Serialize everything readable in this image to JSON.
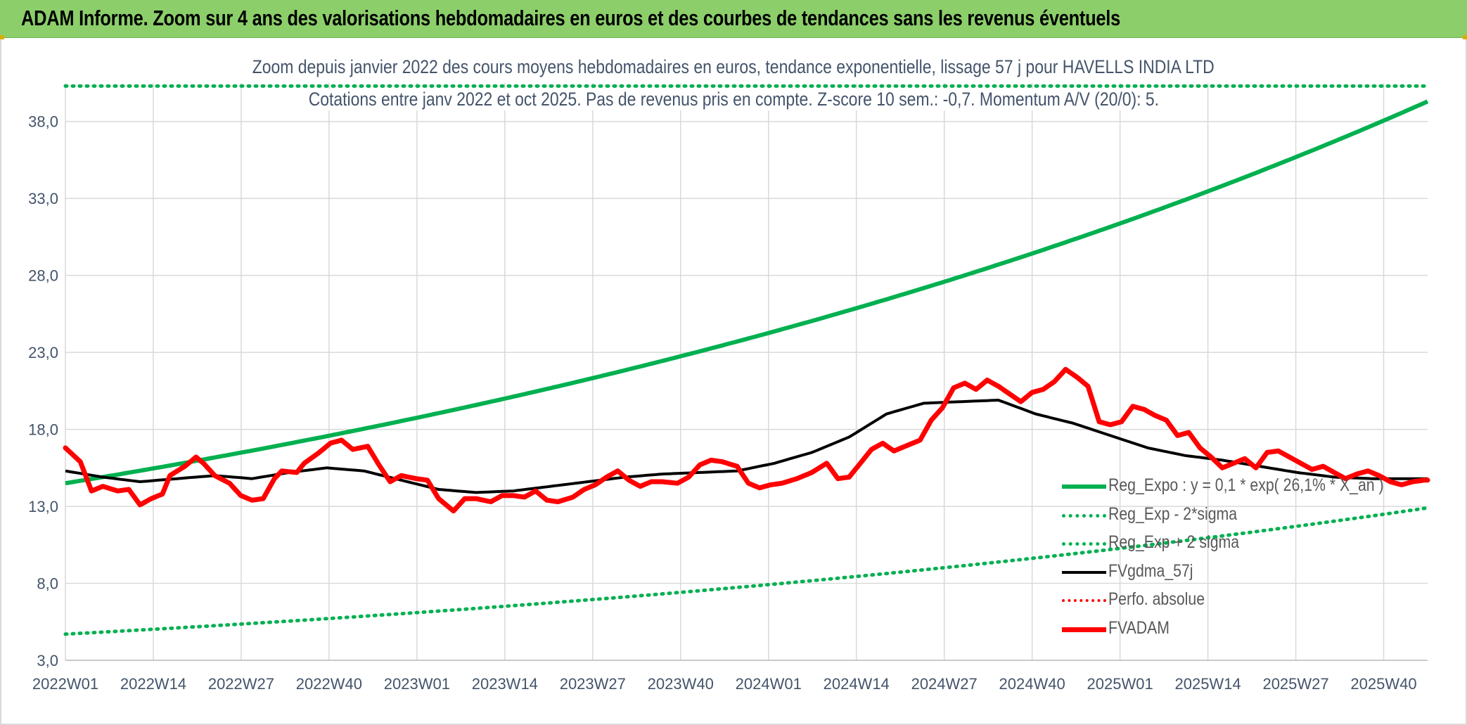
{
  "banner": {
    "title": "ADAM Informe. Zoom sur 4 ans des valorisations hebdomadaires en euros et des courbes de tendances sans les revenus éventuels"
  },
  "chart_data": {
    "type": "line",
    "title": "Zoom depuis janvier 2022 des cours moyens hebdomadaires en euros, tendance exponentielle, lissage 57 j pour HAVELLS INDIA LTD",
    "subtitle": "Cotations entre janv 2022 et oct 2025. Pas de revenus pris en compte. Z-score 10 sem.: -0,7. Momentum A/V (20/0): 5.",
    "xlabel": "",
    "ylabel": "",
    "ylim": [
      3,
      40.5
    ],
    "yticks": [
      "3,0",
      "8,0",
      "13,0",
      "18,0",
      "23,0",
      "28,0",
      "33,0",
      "38,0"
    ],
    "ytick_values": [
      3,
      8,
      13,
      18,
      23,
      28,
      33,
      38
    ],
    "xticks": [
      "2022W01",
      "2022W14",
      "2022W27",
      "2022W40",
      "2023W01",
      "2023W14",
      "2023W27",
      "2023W40",
      "2024W01",
      "2024W14",
      "2024W27",
      "2024W40",
      "2025W01",
      "2025W14",
      "2025W27",
      "2025W40"
    ],
    "x_count": 196,
    "legend_position": "bottom-right",
    "colors": {
      "trend": "#00b050",
      "band": "#00b050",
      "smooth": "#000000",
      "perf": "#ff0000",
      "fvadam": "#ff0000",
      "grid": "#d9d9d9",
      "axis_text": "#44546a"
    },
    "series": [
      {
        "name": "Reg_Expo : y = 0,1 * exp( 26,1% * X_an )",
        "style": "solid-thick",
        "start": 14.5,
        "end": 39.3
      },
      {
        "name": "Reg_Exp - 2*sigma",
        "style": "dotted",
        "start": 4.7,
        "end": 12.9
      },
      {
        "name": "Reg_Exp + 2 sigma",
        "style": "dotted",
        "start": 40.3,
        "end": 40.3
      },
      {
        "name": "FVgdma_57j",
        "style": "solid",
        "knots": [
          [
            0,
            15.3
          ],
          [
            10,
            14.9
          ],
          [
            20,
            14.6
          ],
          [
            30,
            14.8
          ],
          [
            40,
            15.0
          ],
          [
            50,
            14.8
          ],
          [
            60,
            15.2
          ],
          [
            70,
            15.5
          ],
          [
            80,
            15.3
          ],
          [
            90,
            14.7
          ],
          [
            100,
            14.1
          ],
          [
            110,
            13.9
          ],
          [
            120,
            14.0
          ],
          [
            130,
            14.3
          ],
          [
            140,
            14.6
          ],
          [
            150,
            14.9
          ],
          [
            160,
            15.1
          ],
          [
            170,
            15.2
          ],
          [
            180,
            15.3
          ],
          [
            190,
            15.8
          ],
          [
            200,
            16.5
          ],
          [
            210,
            17.5
          ],
          [
            220,
            19.0
          ],
          [
            230,
            19.7
          ],
          [
            240,
            19.8
          ],
          [
            250,
            19.9
          ],
          [
            260,
            19.0
          ],
          [
            270,
            18.4
          ],
          [
            280,
            17.6
          ],
          [
            290,
            16.8
          ],
          [
            300,
            16.3
          ],
          [
            310,
            16.0
          ],
          [
            320,
            15.6
          ],
          [
            330,
            15.2
          ],
          [
            340,
            14.9
          ],
          [
            350,
            14.8
          ]
        ]
      },
      {
        "name": "Perfo. absolue",
        "style": "dotted-red",
        "knots": []
      },
      {
        "name": "FVADAM",
        "style": "solid-thick",
        "knots": [
          [
            0,
            16.8
          ],
          [
            4,
            15.9
          ],
          [
            7,
            14.0
          ],
          [
            10,
            14.3
          ],
          [
            14,
            14.0
          ],
          [
            17,
            14.1
          ],
          [
            20,
            13.1
          ],
          [
            23,
            13.5
          ],
          [
            26,
            13.8
          ],
          [
            28,
            15.0
          ],
          [
            32,
            15.6
          ],
          [
            35,
            16.2
          ],
          [
            37,
            15.8
          ],
          [
            40,
            15.0
          ],
          [
            44,
            14.5
          ],
          [
            47,
            13.7
          ],
          [
            50,
            13.4
          ],
          [
            53,
            13.5
          ],
          [
            56,
            14.8
          ],
          [
            58,
            15.3
          ],
          [
            62,
            15.2
          ],
          [
            64,
            15.8
          ],
          [
            68,
            16.5
          ],
          [
            71,
            17.1
          ],
          [
            74,
            17.3
          ],
          [
            77,
            16.7
          ],
          [
            81,
            16.9
          ],
          [
            84,
            15.7
          ],
          [
            87,
            14.6
          ],
          [
            90,
            15.0
          ],
          [
            94,
            14.8
          ],
          [
            97,
            14.7
          ],
          [
            100,
            13.5
          ],
          [
            104,
            12.7
          ],
          [
            107,
            13.5
          ],
          [
            110,
            13.5
          ],
          [
            114,
            13.3
          ],
          [
            117,
            13.7
          ],
          [
            120,
            13.7
          ],
          [
            123,
            13.6
          ],
          [
            126,
            14.0
          ],
          [
            129,
            13.4
          ],
          [
            132,
            13.3
          ],
          [
            136,
            13.6
          ],
          [
            139,
            14.1
          ],
          [
            142,
            14.4
          ],
          [
            145,
            14.9
          ],
          [
            148,
            15.3
          ],
          [
            151,
            14.7
          ],
          [
            154,
            14.3
          ],
          [
            157,
            14.6
          ],
          [
            160,
            14.6
          ],
          [
            164,
            14.5
          ],
          [
            167,
            14.9
          ],
          [
            170,
            15.7
          ],
          [
            173,
            16.0
          ],
          [
            176,
            15.9
          ],
          [
            180,
            15.6
          ],
          [
            183,
            14.5
          ],
          [
            186,
            14.2
          ],
          [
            189,
            14.4
          ],
          [
            192,
            14.5
          ],
          [
            196,
            14.8
          ],
          [
            200,
            15.2
          ],
          [
            204,
            15.8
          ],
          [
            207,
            14.8
          ],
          [
            210,
            14.9
          ],
          [
            213,
            15.8
          ],
          [
            216,
            16.7
          ],
          [
            219,
            17.1
          ],
          [
            222,
            16.6
          ],
          [
            226,
            17.0
          ],
          [
            229,
            17.3
          ],
          [
            232,
            18.6
          ],
          [
            235,
            19.4
          ],
          [
            238,
            20.7
          ],
          [
            241,
            21.0
          ],
          [
            244,
            20.6
          ],
          [
            247,
            21.2
          ],
          [
            250,
            20.8
          ],
          [
            253,
            20.3
          ],
          [
            256,
            19.8
          ],
          [
            259,
            20.4
          ],
          [
            262,
            20.6
          ],
          [
            265,
            21.1
          ],
          [
            268,
            21.9
          ],
          [
            271,
            21.4
          ],
          [
            274,
            20.8
          ],
          [
            277,
            18.5
          ],
          [
            280,
            18.3
          ],
          [
            283,
            18.5
          ],
          [
            286,
            19.5
          ],
          [
            289,
            19.3
          ],
          [
            292,
            18.9
          ],
          [
            295,
            18.6
          ],
          [
            298,
            17.6
          ],
          [
            301,
            17.8
          ],
          [
            304,
            16.8
          ],
          [
            307,
            16.2
          ],
          [
            310,
            15.5
          ],
          [
            313,
            15.8
          ],
          [
            316,
            16.1
          ],
          [
            319,
            15.5
          ],
          [
            322,
            16.5
          ],
          [
            325,
            16.6
          ],
          [
            328,
            16.2
          ],
          [
            331,
            15.8
          ],
          [
            334,
            15.4
          ],
          [
            337,
            15.6
          ],
          [
            340,
            15.2
          ],
          [
            343,
            14.8
          ],
          [
            346,
            15.1
          ],
          [
            349,
            15.3
          ],
          [
            352,
            15.0
          ],
          [
            355,
            14.6
          ],
          [
            358,
            14.4
          ],
          [
            361,
            14.6
          ],
          [
            364,
            14.7
          ]
        ]
      }
    ]
  }
}
